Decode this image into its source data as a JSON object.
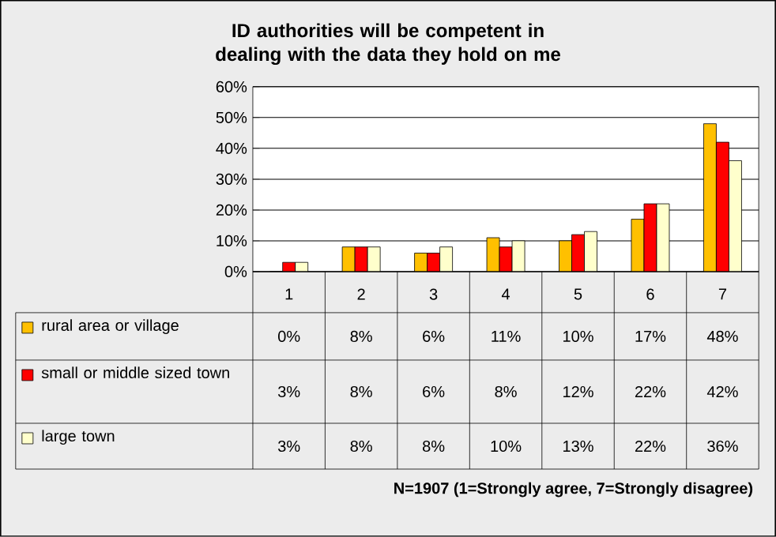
{
  "chart_data": {
    "type": "bar",
    "title": "ID authorities will be competent in dealing with the data they hold on me",
    "categories": [
      "1",
      "2",
      "3",
      "4",
      "5",
      "6",
      "7"
    ],
    "series": [
      {
        "name": "rural area or village",
        "color": "#ffc000",
        "values": [
          0,
          8,
          6,
          11,
          10,
          17,
          48
        ],
        "value_labels": [
          "0%",
          "8%",
          "6%",
          "11%",
          "10%",
          "17%",
          "48%"
        ]
      },
      {
        "name": "small or middle sized town",
        "color": "#ff0000",
        "values": [
          3,
          8,
          6,
          8,
          12,
          22,
          42
        ],
        "value_labels": [
          "3%",
          "8%",
          "6%",
          "8%",
          "12%",
          "22%",
          "42%"
        ]
      },
      {
        "name": "large town",
        "color": "#ffffcc",
        "values": [
          3,
          8,
          8,
          10,
          13,
          22,
          36
        ],
        "value_labels": [
          "3%",
          "8%",
          "8%",
          "10%",
          "13%",
          "22%",
          "36%"
        ]
      }
    ],
    "ylim": [
      0,
      60
    ],
    "yticks": [
      {
        "value": 0,
        "label": "0%"
      },
      {
        "value": 10,
        "label": "10%"
      },
      {
        "value": 20,
        "label": "20%"
      },
      {
        "value": 30,
        "label": "30%"
      },
      {
        "value": 40,
        "label": "40%"
      },
      {
        "value": 50,
        "label": "50%"
      },
      {
        "value": 60,
        "label": "60%"
      }
    ],
    "grid": "y",
    "legend": "left",
    "annotations": [
      "N=1907 (1=Strongly agree, 7=Strongly disagree)"
    ]
  }
}
